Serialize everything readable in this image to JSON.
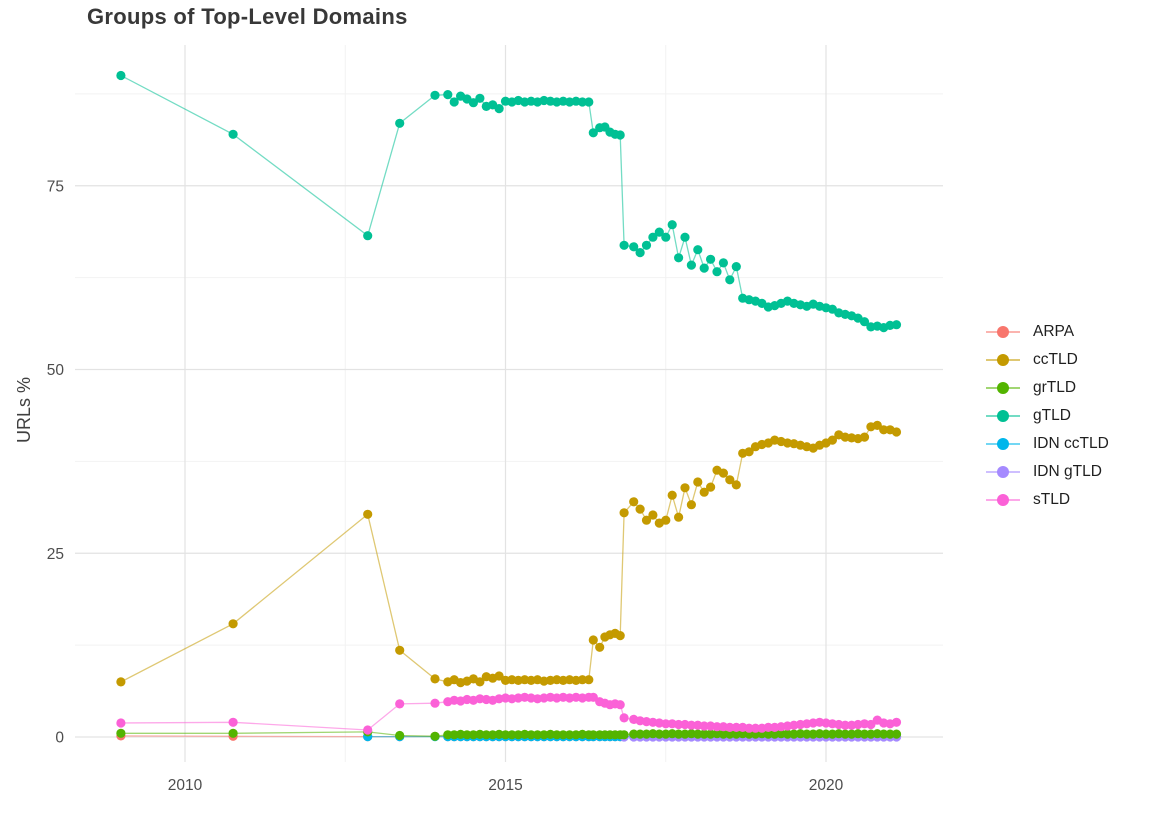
{
  "title": "Groups of Top-Level Domains",
  "colors": {
    "grid_major": "#e3e3e3",
    "grid_minor": "#f2f2f2",
    "tick_text": "#4d4d4d",
    "axis_title_text": "#404040",
    "title_text": "#383838",
    "background": "#ffffff"
  },
  "legend": {
    "items": [
      {
        "label": "ARPA",
        "color": "#F8766D"
      },
      {
        "label": "ccTLD",
        "color": "#C49A00"
      },
      {
        "label": "grTLD",
        "color": "#53B400"
      },
      {
        "label": "gTLD",
        "color": "#00C094"
      },
      {
        "label": "IDN ccTLD",
        "color": "#00B6EB"
      },
      {
        "label": "IDN gTLD",
        "color": "#A58AFF"
      },
      {
        "label": "sTLD",
        "color": "#FB61D7"
      }
    ]
  },
  "chart_data": {
    "type": "line",
    "title": "Groups of Top-Level Domains",
    "xlabel": "",
    "ylabel": "URLs %",
    "xlim": [
      2008.3,
      2021.6
    ],
    "ylim": [
      -2,
      94
    ],
    "grid": "major+minor",
    "legend_position": "right",
    "x_major_ticks": [
      {
        "value": 2010,
        "label": "2010"
      },
      {
        "value": 2015,
        "label": "2015"
      },
      {
        "value": 2020,
        "label": "2020"
      }
    ],
    "y_major_ticks": [
      {
        "value": 0,
        "label": "0"
      },
      {
        "value": 25,
        "label": "25"
      },
      {
        "value": 50,
        "label": "50"
      },
      {
        "value": 75,
        "label": "75"
      }
    ],
    "x_minor_ticks": [
      2012.5,
      2017.5
    ],
    "y_minor_ticks": [
      12.5,
      37.5,
      62.5,
      87.5
    ],
    "draw_order": [
      0,
      4,
      5,
      1,
      2,
      3,
      6
    ],
    "x": [
      2009.0,
      2010.75,
      2012.85,
      2013.35,
      2013.9,
      2014.1,
      2014.2,
      2014.3,
      2014.4,
      2014.5,
      2014.6,
      2014.7,
      2014.8,
      2014.9,
      2015.0,
      2015.1,
      2015.2,
      2015.3,
      2015.4,
      2015.5,
      2015.6,
      2015.7,
      2015.8,
      2015.9,
      2016.0,
      2016.1,
      2016.2,
      2016.3,
      2016.37,
      2016.47,
      2016.55,
      2016.63,
      2016.71,
      2016.79,
      2016.85,
      2017.0,
      2017.1,
      2017.2,
      2017.3,
      2017.4,
      2017.5,
      2017.6,
      2017.7,
      2017.8,
      2017.9,
      2018.0,
      2018.1,
      2018.2,
      2018.3,
      2018.4,
      2018.5,
      2018.6,
      2018.7,
      2018.8,
      2018.9,
      2019.0,
      2019.1,
      2019.2,
      2019.3,
      2019.4,
      2019.5,
      2019.6,
      2019.7,
      2019.8,
      2019.9,
      2020.0,
      2020.1,
      2020.2,
      2020.3,
      2020.4,
      2020.5,
      2020.6,
      2020.7,
      2020.8,
      2020.9,
      2021.0,
      2021.1
    ],
    "series": [
      {
        "name": "ARPA",
        "color": "#F8766D",
        "values": [
          0.15,
          0.1,
          0.05,
          0.05,
          0.08,
          0.05,
          0.05,
          0.05,
          0.05,
          0.05,
          0.05,
          0.05,
          0.05,
          0.05,
          0.05,
          0.05,
          0.05,
          0.05,
          0.05,
          0.05,
          0.05,
          0.05,
          0.05,
          0.05,
          0.05,
          0.05,
          0.05,
          0.05,
          0.05,
          0.05,
          0.05,
          0.05,
          0.05,
          0.05,
          0.05,
          0.05,
          0.05,
          0.05,
          0.05,
          0.05,
          0.05,
          0.05,
          0.05,
          0.05,
          0.05,
          0.05,
          0.05,
          0.05,
          0.05,
          0.05,
          0.05,
          0.05,
          0.05,
          0.05,
          0.05,
          0.05,
          0.05,
          0.05,
          0.05,
          0.05,
          0.05,
          0.05,
          0.05,
          0.05,
          0.05,
          0.05,
          0.05,
          0.05,
          0.05,
          0.05,
          0.05,
          0.05,
          0.05,
          0.05,
          0.05,
          0.05,
          0.05
        ]
      },
      {
        "name": "ccTLD",
        "color": "#C49A00",
        "values": [
          7.5,
          15.4,
          30.3,
          11.8,
          7.9,
          7.5,
          7.8,
          7.4,
          7.6,
          7.9,
          7.5,
          8.2,
          8.0,
          8.3,
          7.7,
          7.8,
          7.7,
          7.8,
          7.7,
          7.8,
          7.6,
          7.7,
          7.8,
          7.7,
          7.8,
          7.7,
          7.8,
          7.8,
          13.2,
          12.2,
          13.6,
          13.9,
          14.1,
          13.8,
          30.5,
          32.0,
          31.0,
          29.5,
          30.2,
          29.1,
          29.5,
          32.9,
          29.9,
          33.9,
          31.6,
          34.7,
          33.3,
          34.0,
          36.3,
          35.9,
          35.0,
          34.3,
          38.6,
          38.8,
          39.5,
          39.8,
          40.0,
          40.4,
          40.2,
          40.0,
          39.9,
          39.7,
          39.5,
          39.3,
          39.7,
          40.0,
          40.4,
          41.1,
          40.8,
          40.7,
          40.6,
          40.8,
          42.2,
          42.4,
          41.8,
          41.8,
          41.5
        ]
      },
      {
        "name": "grTLD",
        "color": "#53B400",
        "values": [
          0.5,
          0.5,
          0.7,
          0.2,
          0.1,
          0.3,
          0.3,
          0.35,
          0.3,
          0.3,
          0.35,
          0.3,
          0.3,
          0.35,
          0.3,
          0.3,
          0.3,
          0.35,
          0.3,
          0.3,
          0.3,
          0.35,
          0.3,
          0.3,
          0.3,
          0.3,
          0.35,
          0.3,
          0.3,
          0.3,
          0.3,
          0.3,
          0.3,
          0.3,
          0.3,
          0.4,
          0.4,
          0.4,
          0.45,
          0.4,
          0.4,
          0.45,
          0.4,
          0.4,
          0.45,
          0.4,
          0.4,
          0.4,
          0.45,
          0.4,
          0.4,
          0.4,
          0.45,
          0.4,
          0.4,
          0.45,
          0.4,
          0.4,
          0.45,
          0.4,
          0.4,
          0.45,
          0.4,
          0.4,
          0.45,
          0.4,
          0.4,
          0.45,
          0.4,
          0.4,
          0.45,
          0.4,
          0.4,
          0.45,
          0.4,
          0.4,
          0.4
        ]
      },
      {
        "name": "gTLD",
        "color": "#00C094",
        "values": [
          90.0,
          82.0,
          68.2,
          83.5,
          87.3,
          87.4,
          86.4,
          87.2,
          86.8,
          86.3,
          86.9,
          85.8,
          86.0,
          85.5,
          86.5,
          86.4,
          86.6,
          86.4,
          86.5,
          86.4,
          86.6,
          86.5,
          86.4,
          86.5,
          86.4,
          86.5,
          86.4,
          86.4,
          82.2,
          82.9,
          83.0,
          82.3,
          82.0,
          81.9,
          66.9,
          66.7,
          65.9,
          66.9,
          68.0,
          68.7,
          68.0,
          69.7,
          65.2,
          68.0,
          64.2,
          66.3,
          63.8,
          65.0,
          63.3,
          64.5,
          62.2,
          64.0,
          59.7,
          59.5,
          59.3,
          59.0,
          58.5,
          58.7,
          59.0,
          59.3,
          59.0,
          58.8,
          58.6,
          58.9,
          58.6,
          58.4,
          58.2,
          57.7,
          57.5,
          57.3,
          57.0,
          56.5,
          55.8,
          55.9,
          55.7,
          56.0,
          56.1
        ]
      },
      {
        "name": "IDN ccTLD",
        "color": "#00B6EB",
        "values": [
          null,
          null,
          0.05,
          0.05,
          0.05,
          0.05,
          0.05,
          0.05,
          0.05,
          0.05,
          0.05,
          0.05,
          0.05,
          0.05,
          0.05,
          0.05,
          0.05,
          0.05,
          0.05,
          0.05,
          0.05,
          0.05,
          0.05,
          0.05,
          0.05,
          0.05,
          0.05,
          0.05,
          0.05,
          0.05,
          0.05,
          0.05,
          0.05,
          0.05,
          0.05,
          0.1,
          0.1,
          0.1,
          0.1,
          0.1,
          0.1,
          0.1,
          0.1,
          0.1,
          0.1,
          0.1,
          0.1,
          0.1,
          0.1,
          0.1,
          0.1,
          0.1,
          0.1,
          0.1,
          0.1,
          0.1,
          0.1,
          0.1,
          0.1,
          0.1,
          0.1,
          0.1,
          0.1,
          0.1,
          0.1,
          0.1,
          0.1,
          0.1,
          0.1,
          0.1,
          0.1,
          0.1,
          0.1,
          0.1,
          0.1,
          0.1,
          0.1
        ]
      },
      {
        "name": "IDN gTLD",
        "color": "#A58AFF",
        "values": [
          null,
          null,
          null,
          null,
          null,
          null,
          null,
          null,
          null,
          null,
          null,
          null,
          null,
          null,
          null,
          null,
          null,
          null,
          null,
          null,
          null,
          null,
          null,
          null,
          null,
          null,
          null,
          null,
          null,
          null,
          null,
          null,
          null,
          null,
          0.0,
          0.0,
          0.0,
          0.0,
          0.0,
          0.0,
          0.0,
          0.0,
          0.0,
          0.0,
          0.0,
          0.0,
          0.0,
          0.0,
          0.0,
          0.0,
          0.0,
          0.0,
          0.0,
          0.0,
          0.0,
          0.0,
          0.0,
          0.0,
          0.0,
          0.0,
          0.0,
          0.0,
          0.0,
          0.0,
          0.0,
          0.0,
          0.0,
          0.0,
          0.0,
          0.0,
          0.0,
          0.0,
          0.0,
          0.0,
          0.0,
          0.0,
          0.0
        ]
      },
      {
        "name": "sTLD",
        "color": "#FB61D7",
        "values": [
          1.9,
          2.0,
          0.95,
          4.5,
          4.6,
          4.8,
          5.0,
          4.9,
          5.1,
          5.0,
          5.2,
          5.1,
          5.0,
          5.2,
          5.3,
          5.2,
          5.3,
          5.4,
          5.3,
          5.2,
          5.3,
          5.4,
          5.3,
          5.4,
          5.3,
          5.4,
          5.3,
          5.4,
          5.4,
          4.8,
          4.6,
          4.4,
          4.5,
          4.4,
          2.6,
          2.4,
          2.2,
          2.1,
          2.0,
          1.9,
          1.8,
          1.8,
          1.7,
          1.7,
          1.6,
          1.6,
          1.5,
          1.5,
          1.4,
          1.4,
          1.3,
          1.3,
          1.3,
          1.2,
          1.2,
          1.2,
          1.3,
          1.3,
          1.4,
          1.5,
          1.6,
          1.7,
          1.8,
          1.9,
          2.0,
          1.9,
          1.8,
          1.7,
          1.6,
          1.6,
          1.7,
          1.8,
          1.7,
          2.3,
          1.9,
          1.8,
          2.0
        ]
      }
    ]
  }
}
